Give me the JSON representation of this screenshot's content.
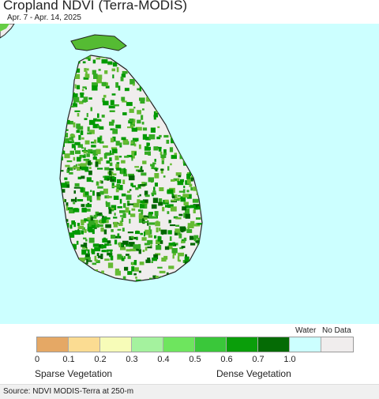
{
  "header": {
    "title": "Cropland NDVI (Terra-MODIS)",
    "date_range": "Apr. 7 - Apr. 14, 2025"
  },
  "map": {
    "ocean_color": "#ccffff",
    "land_nodata_color": "#f0eded",
    "vegetation_colors": [
      "#66bb33",
      "#33aa22",
      "#009900",
      "#006600"
    ]
  },
  "legend": {
    "water_label": "Water",
    "nodata_label": "No Data",
    "ticks": [
      "0",
      "0.1",
      "0.2",
      "0.3",
      "0.4",
      "0.5",
      "0.6",
      "0.7",
      "1.0"
    ],
    "colors": [
      "#e5a865",
      "#fbdc92",
      "#f7fcb8",
      "#a4f29e",
      "#6ee55e",
      "#3ac73a",
      "#0a9e0a",
      "#056b05",
      "#ccffff",
      "#f0eded"
    ],
    "sparse_label": "Sparse Vegetation",
    "dense_label": "Dense Vegetation"
  },
  "footer": {
    "source": "Source: NDVI MODIS-Terra at 250-m"
  }
}
